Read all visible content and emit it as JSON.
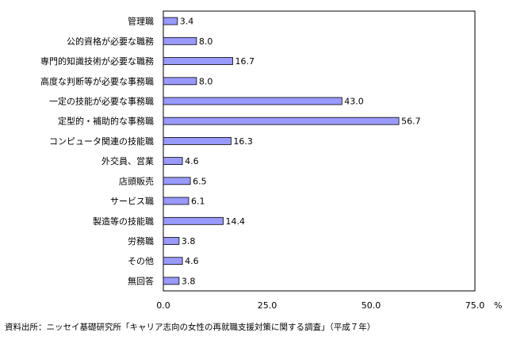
{
  "chart_data": {
    "type": "bar",
    "orientation": "horizontal",
    "categories": [
      "管理職",
      "公的資格が必要な職務",
      "専門的知識技術が必要な職務",
      "高度な判断等が必要な事務職",
      "一定の技能が必要な事務職",
      "定型的・補助的な事務職",
      "コンピュータ関連の技能職",
      "外交員、営業",
      "店頭販売",
      "サービス職",
      "製造等の技能職",
      "労務職",
      "その他",
      "無回答"
    ],
    "values": [
      3.4,
      8.0,
      16.7,
      8.0,
      43.0,
      56.7,
      16.3,
      4.6,
      6.5,
      6.1,
      14.4,
      3.8,
      4.6,
      3.8
    ],
    "value_labels": [
      "3.4",
      "8.0",
      "16.7",
      "8.0",
      "43.0",
      "56.7",
      "16.3",
      "4.6",
      "6.5",
      "6.1",
      "14.4",
      "3.8",
      "4.6",
      "3.8"
    ],
    "xlim": [
      0,
      75
    ],
    "xticks": [
      "0.0",
      "25.0",
      "50.0",
      "75.0"
    ],
    "xunit": "%",
    "bar_color": "#9999ff",
    "grid": false,
    "legend": "none"
  },
  "source_note": "資料出所：ニッセイ基礎研究所「キャリア志向の女性の再就職支援対策に関する調査」（平成７年）"
}
